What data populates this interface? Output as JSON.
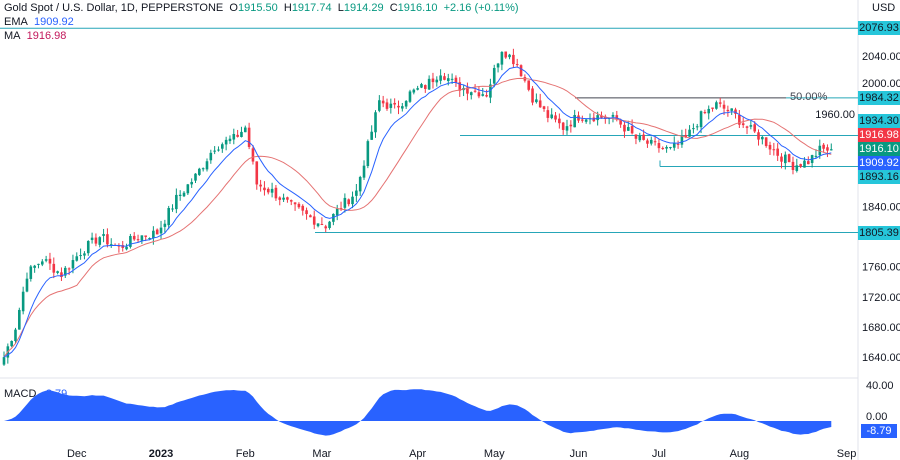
{
  "header": {
    "title": "Gold Spot / U.S. Dollar, 1D, PEPPERSTONE",
    "o_label": "O",
    "o": "1915.50",
    "h_label": "H",
    "h": "1917.74",
    "l_label": "L",
    "l": "1914.29",
    "c_label": "C",
    "c": "1916.10",
    "change": "+2.16 (+0.11%)",
    "currency": "USD"
  },
  "indicators": {
    "ema_label": "EMA",
    "ema": "1909.92",
    "ma_label": "MA",
    "ma": "1916.98",
    "macd_label": "MACD",
    "macd": "−8.79"
  },
  "colors": {
    "up": "#089981",
    "down": "#f23645",
    "ema": "#2962ff",
    "ma": "#e57373",
    "level": "#26a6b8",
    "macd": "#2962ff"
  },
  "levels": [
    {
      "price": 2076.93,
      "label": "2076.93"
    },
    {
      "price": 1984.32,
      "label": "1984.32",
      "fib": "50.00%"
    },
    {
      "price": 1934.3,
      "label": "1934.30"
    },
    {
      "price": 1893.16,
      "label": "1893.16"
    },
    {
      "price": 1805.39,
      "label": "1805.39"
    }
  ],
  "tags": {
    "ma": "1916.98",
    "close": "1916.10",
    "ema": "1909.92",
    "macd": "-8.79"
  },
  "chart_data": {
    "type": "candlestick",
    "title": "Gold Spot / U.S. Dollar, 1D",
    "y_ticks": [
      "2040.00",
      "2000.00",
      "1960.00",
      "1840.00",
      "1760.00",
      "1720.00",
      "1680.00",
      "1640.00"
    ],
    "y_tick_values": [
      2040,
      2000,
      1960,
      1840,
      1760,
      1720,
      1680,
      1640
    ],
    "ylim": [
      1620,
      2085
    ],
    "x_ticks": [
      {
        "label": "Dec",
        "day": 19
      },
      {
        "label": "2023",
        "day": 41
      },
      {
        "label": "Feb",
        "day": 63
      },
      {
        "label": "Mar",
        "day": 83
      },
      {
        "label": "Apr",
        "day": 108
      },
      {
        "label": "May",
        "day": 128
      },
      {
        "label": "Jun",
        "day": 150
      },
      {
        "label": "Jul",
        "day": 171
      },
      {
        "label": "Aug",
        "day": 192
      },
      {
        "label": "Sep",
        "day": 220
      }
    ],
    "macd_ticks": [
      "40.00",
      "0.00"
    ],
    "close_anchors": [
      [
        0,
        1640
      ],
      [
        3,
        1680
      ],
      [
        6,
        1750
      ],
      [
        10,
        1770
      ],
      [
        15,
        1750
      ],
      [
        20,
        1780
      ],
      [
        25,
        1800
      ],
      [
        30,
        1785
      ],
      [
        35,
        1800
      ],
      [
        40,
        1805
      ],
      [
        45,
        1850
      ],
      [
        50,
        1880
      ],
      [
        55,
        1920
      ],
      [
        60,
        1930
      ],
      [
        63,
        1945
      ],
      [
        66,
        1870
      ],
      [
        70,
        1860
      ],
      [
        75,
        1840
      ],
      [
        80,
        1825
      ],
      [
        84,
        1815
      ],
      [
        88,
        1840
      ],
      [
        92,
        1860
      ],
      [
        95,
        1920
      ],
      [
        98,
        1980
      ],
      [
        102,
        1970
      ],
      [
        106,
        1990
      ],
      [
        110,
        2000
      ],
      [
        114,
        2020
      ],
      [
        118,
        2000
      ],
      [
        122,
        1995
      ],
      [
        126,
        1990
      ],
      [
        130,
        2050
      ],
      [
        134,
        2030
      ],
      [
        138,
        1985
      ],
      [
        142,
        1960
      ],
      [
        146,
        1945
      ],
      [
        150,
        1960
      ],
      [
        155,
        1960
      ],
      [
        160,
        1955
      ],
      [
        165,
        1930
      ],
      [
        170,
        1920
      ],
      [
        174,
        1915
      ],
      [
        178,
        1930
      ],
      [
        182,
        1960
      ],
      [
        186,
        1975
      ],
      [
        190,
        1965
      ],
      [
        194,
        1945
      ],
      [
        198,
        1930
      ],
      [
        202,
        1910
      ],
      [
        206,
        1895
      ],
      [
        210,
        1900
      ],
      [
        213,
        1915
      ],
      [
        216,
        1916.1
      ]
    ]
  }
}
